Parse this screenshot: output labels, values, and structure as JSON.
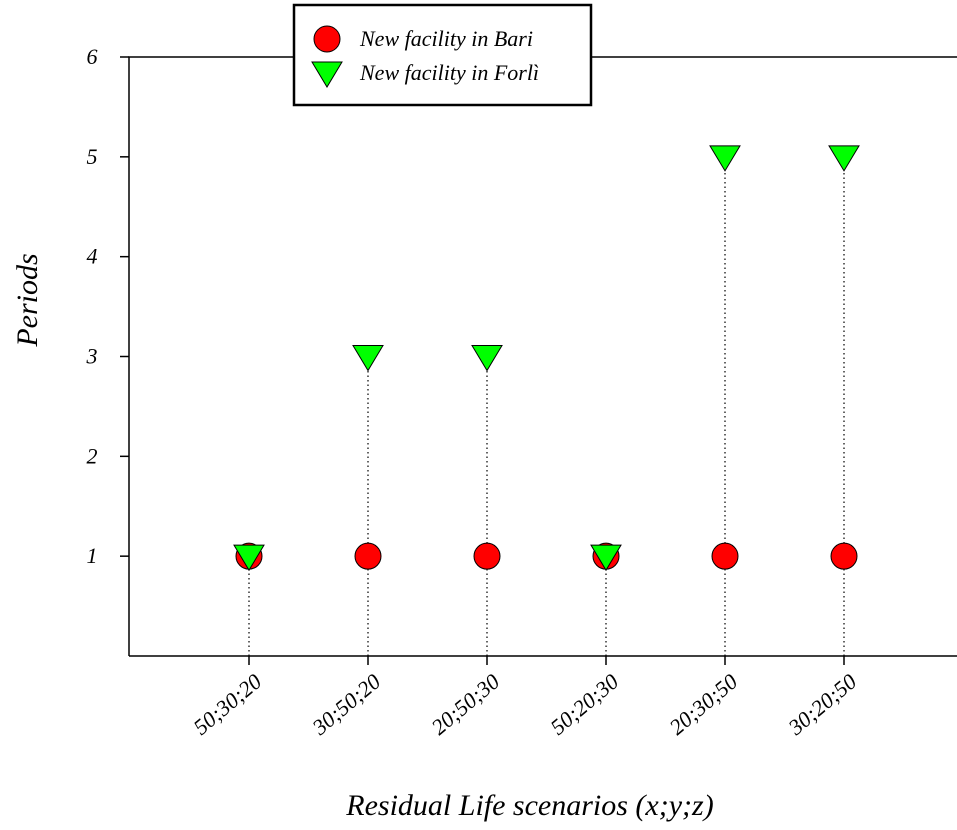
{
  "chart_data": {
    "type": "scatter",
    "categories": [
      "50;30;20",
      "30;50;20",
      "20;50;30",
      "50;20;30",
      "20;30;50",
      "30;20;50"
    ],
    "series": [
      {
        "name": "New facility in Bari",
        "marker": "circle",
        "color": "#ff0000",
        "values": [
          1,
          1,
          1,
          1,
          1,
          1
        ]
      },
      {
        "name": "New facility in Forlì",
        "marker": "triangle-down",
        "color": "#00ff00",
        "values": [
          1,
          3,
          3,
          1,
          5,
          5
        ]
      }
    ],
    "xlabel": "Residual Life scenarios (x;y;z)",
    "ylabel": "Periods",
    "ylim": [
      0,
      6
    ],
    "yticks": [
      1,
      2,
      3,
      4,
      5,
      6
    ],
    "grid": false,
    "legend_position": "top-left",
    "drop_lines": true
  }
}
